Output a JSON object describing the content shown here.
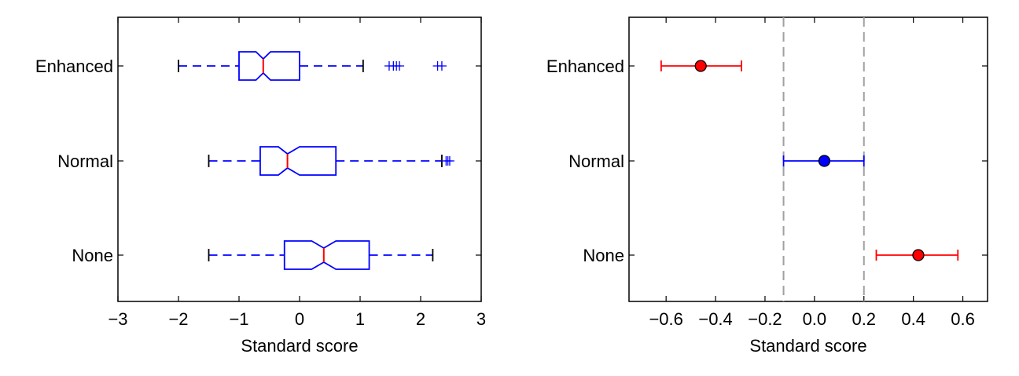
{
  "chart_data": [
    {
      "type": "boxplot",
      "notched": true,
      "xlabel": "Standard score",
      "xlim": [
        -3,
        3
      ],
      "xticks": [
        "−3",
        "−2",
        "−1",
        "0",
        "1",
        "2",
        "3"
      ],
      "xtick_values": [
        -3,
        -2,
        -1,
        0,
        1,
        2,
        3
      ],
      "categories": [
        "Enhanced",
        "Normal",
        "None"
      ],
      "colors": {
        "box": "#0000ff",
        "median": "#ff0000",
        "whisker_cap": "#000000",
        "flier": "#0000ff"
      },
      "boxes": [
        {
          "category": "Enhanced",
          "whisker_low": -2.0,
          "q1": -1.0,
          "notch_low": -0.72,
          "median": -0.6,
          "notch_high": -0.48,
          "q3": 0.0,
          "whisker_high": 1.05,
          "fliers": [
            1.48,
            1.55,
            1.6,
            1.65,
            2.28,
            2.35
          ]
        },
        {
          "category": "Normal",
          "whisker_low": -1.5,
          "q1": -0.65,
          "notch_low": -0.35,
          "median": -0.2,
          "notch_high": 0.0,
          "q3": 0.6,
          "whisker_high": 2.35,
          "fliers": [
            2.42,
            2.45,
            2.48
          ]
        },
        {
          "category": "None",
          "whisker_low": -1.5,
          "q1": -0.25,
          "notch_low": 0.2,
          "median": 0.4,
          "notch_high": 0.6,
          "q3": 1.15,
          "whisker_high": 2.2,
          "fliers": []
        }
      ]
    },
    {
      "type": "errorbar",
      "xlabel": "Standard score",
      "xlim": [
        -0.75,
        0.7
      ],
      "xticks": [
        "−0.6",
        "−0.4",
        "−0.2",
        "0.0",
        "0.2",
        "0.4",
        "0.6"
      ],
      "xtick_values": [
        -0.6,
        -0.4,
        -0.2,
        0.0,
        0.2,
        0.4,
        0.6
      ],
      "categories": [
        "Enhanced",
        "Normal",
        "None"
      ],
      "reference_lines": [
        -0.125,
        0.2
      ],
      "points": [
        {
          "category": "Enhanced",
          "mean": -0.46,
          "low": -0.62,
          "high": -0.295,
          "color": "#ff0000"
        },
        {
          "category": "Normal",
          "mean": 0.04,
          "low": -0.125,
          "high": 0.2,
          "color": "#0000ff"
        },
        {
          "category": "None",
          "mean": 0.42,
          "low": 0.25,
          "high": 0.58,
          "color": "#ff0000"
        }
      ]
    }
  ]
}
